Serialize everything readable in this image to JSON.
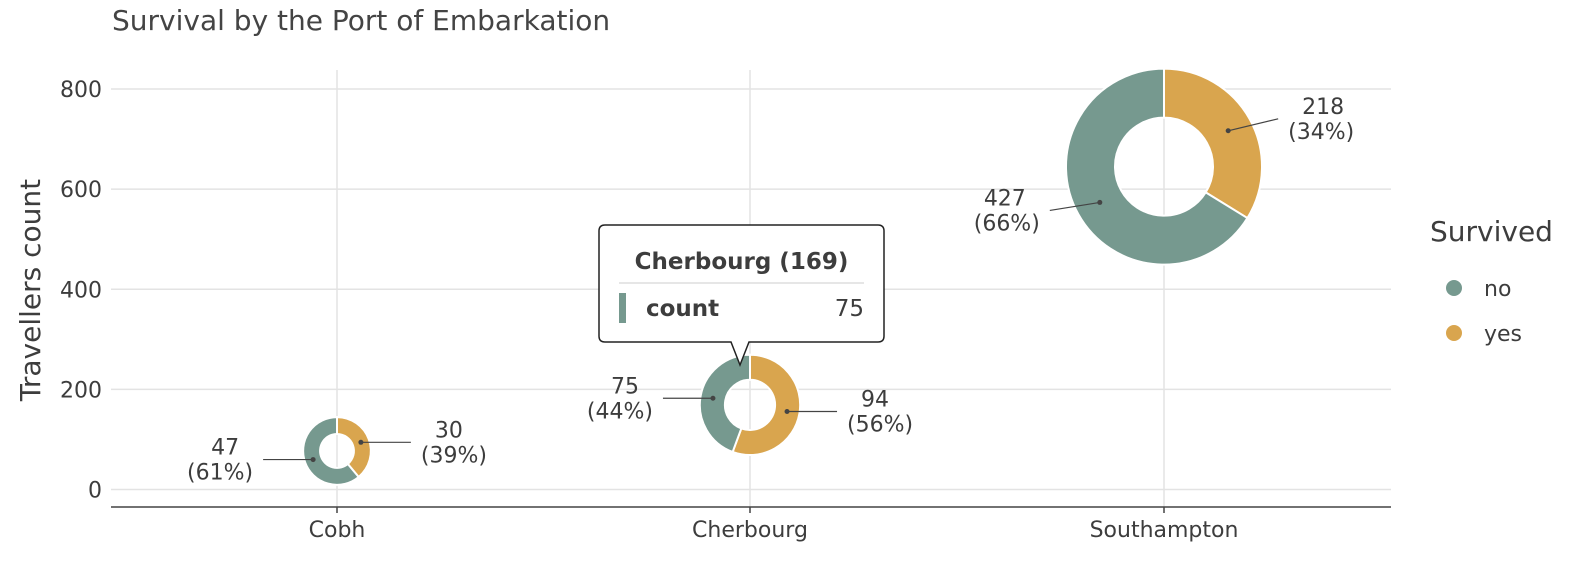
{
  "chart_data": {
    "type": "donut-bubble",
    "title": "Survival by the Port of Embarkation",
    "ylabel": "Travellers count",
    "xlabel": "",
    "categories": [
      "Cobh",
      "Cherbourg",
      "Southampton"
    ],
    "yticks": [
      0,
      200,
      400,
      600,
      800
    ],
    "ylim": [
      -35,
      838
    ],
    "grid": true,
    "series": [
      {
        "name": "no",
        "color": "#76998f",
        "values": [
          47,
          75,
          427
        ],
        "percents": [
          "61%",
          "44%",
          "66%"
        ]
      },
      {
        "name": "yes",
        "color": "#d9a54e",
        "values": [
          30,
          94,
          218
        ],
        "percents": [
          "39%",
          "56%",
          "34%"
        ]
      }
    ],
    "totals": [
      77,
      169,
      645
    ],
    "legend": {
      "title": "Survived",
      "position": "right"
    },
    "tooltip": {
      "title": "Cherbourg (169)",
      "label": "count",
      "value": "75",
      "series": "no",
      "category": "Cherbourg"
    }
  }
}
